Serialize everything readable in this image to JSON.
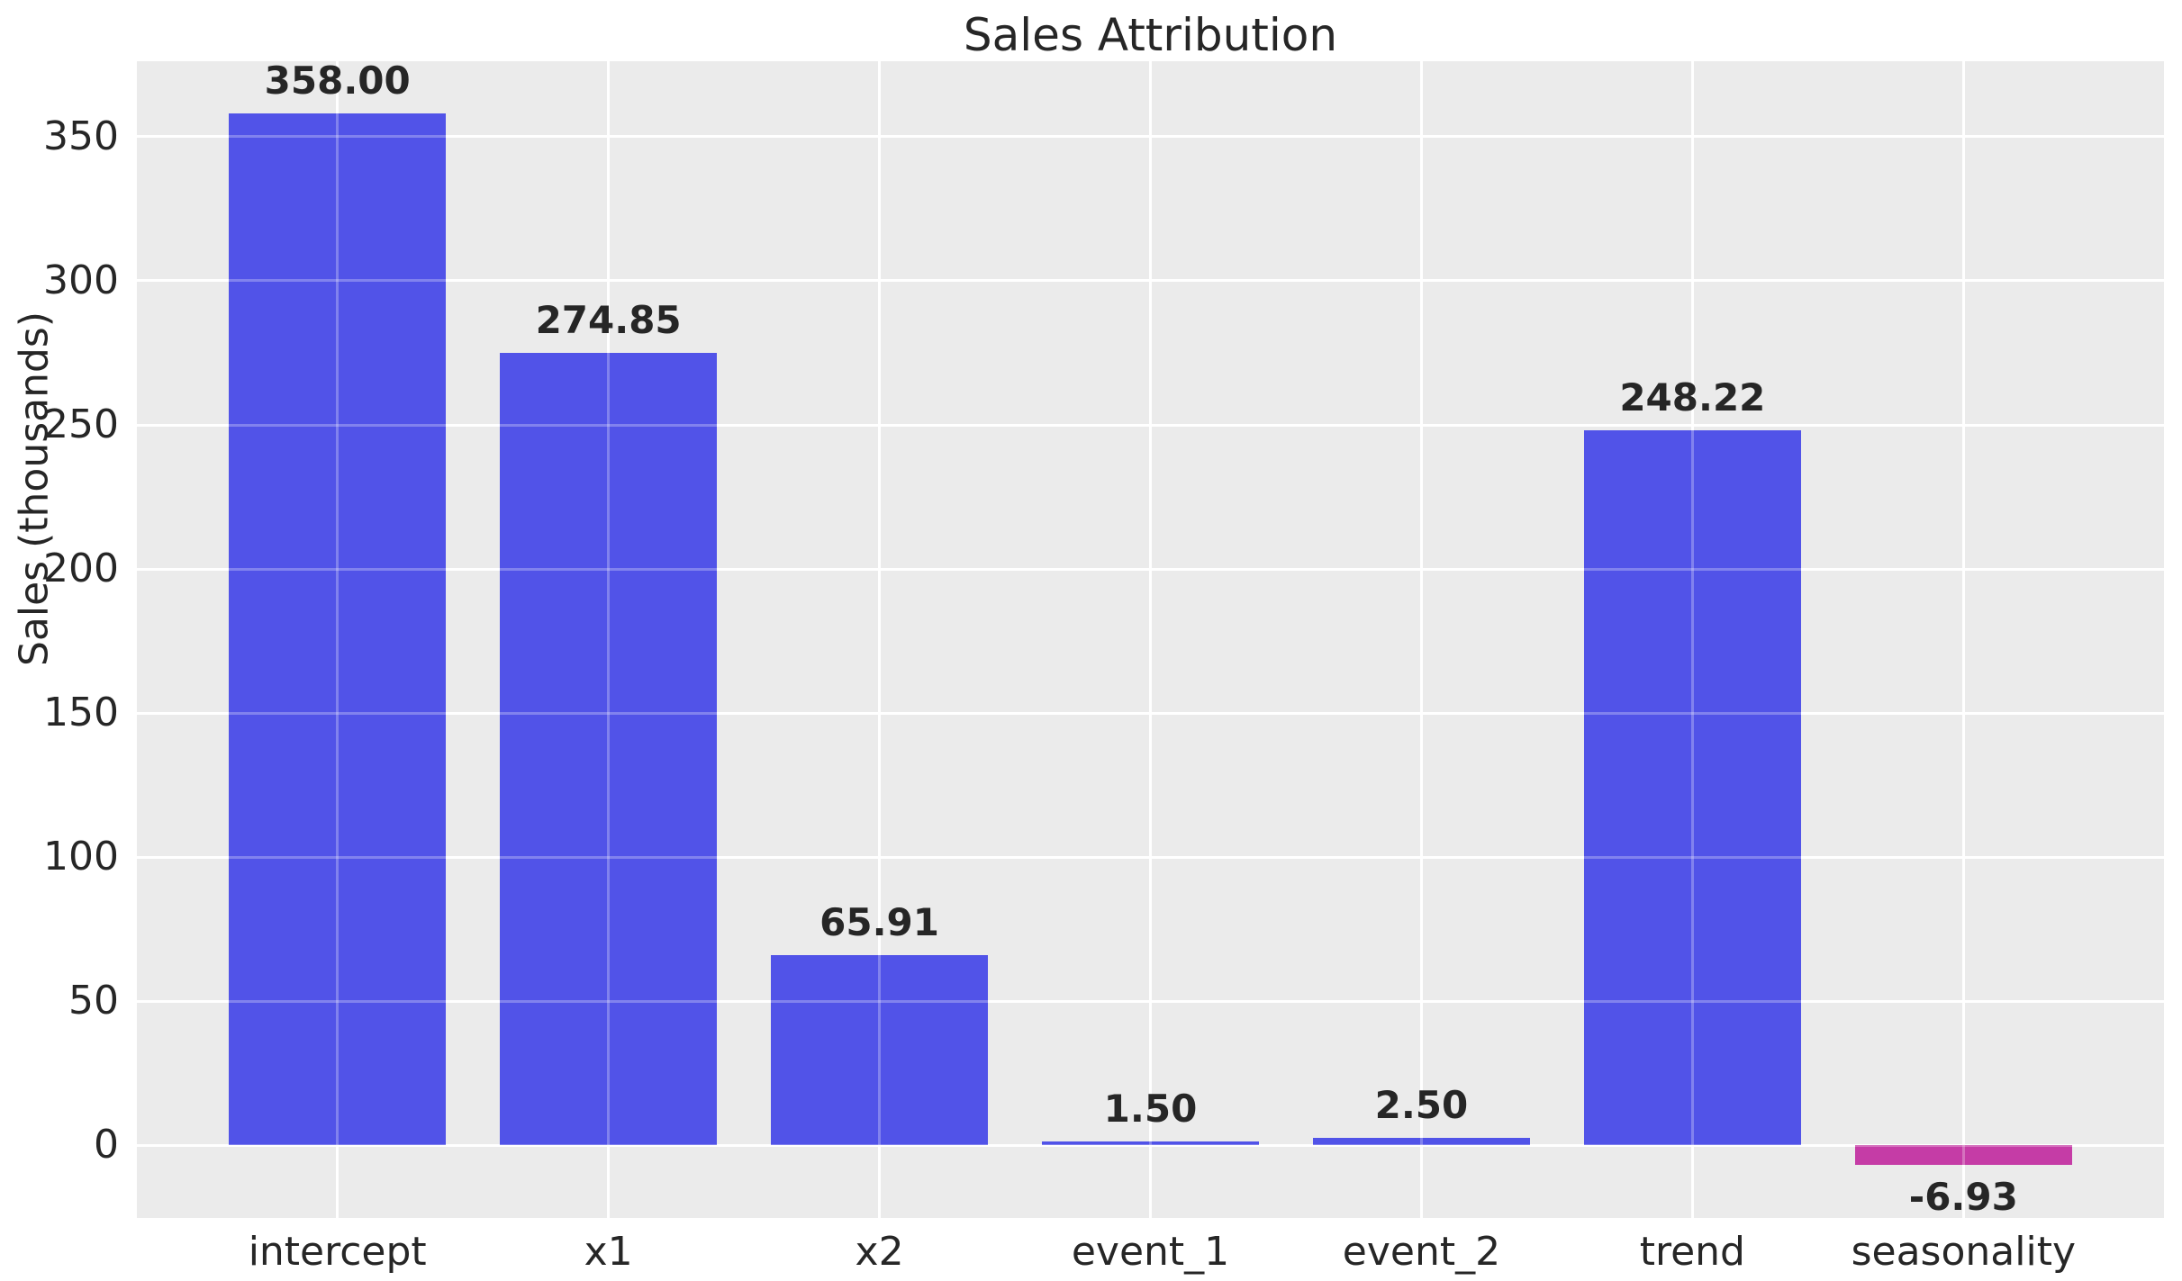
{
  "title": "Sales Attribution",
  "chart_data": {
    "type": "bar",
    "title": "Sales Attribution",
    "xlabel": "",
    "ylabel": "Sales (thousands)",
    "categories": [
      "intercept",
      "x1",
      "x2",
      "event_1",
      "event_2",
      "trend",
      "seasonality"
    ],
    "values": [
      358.0,
      274.85,
      65.91,
      1.5,
      2.5,
      248.22,
      -6.93
    ],
    "value_labels": [
      "358.00",
      "274.85",
      "65.91",
      "1.50",
      "2.50",
      "248.22",
      "-6.93"
    ],
    "yticks": [
      0,
      50,
      100,
      150,
      200,
      250,
      300,
      350
    ],
    "ylim": [
      -25.2,
      376.2
    ],
    "grid": true,
    "legend": "none",
    "style": {
      "positive_bar_color": "#5153e8",
      "negative_bar_color": "#c53ca6",
      "plot_background": "#ebebeb",
      "gridline_color": "#ffffff",
      "text_color": "#262626"
    }
  }
}
